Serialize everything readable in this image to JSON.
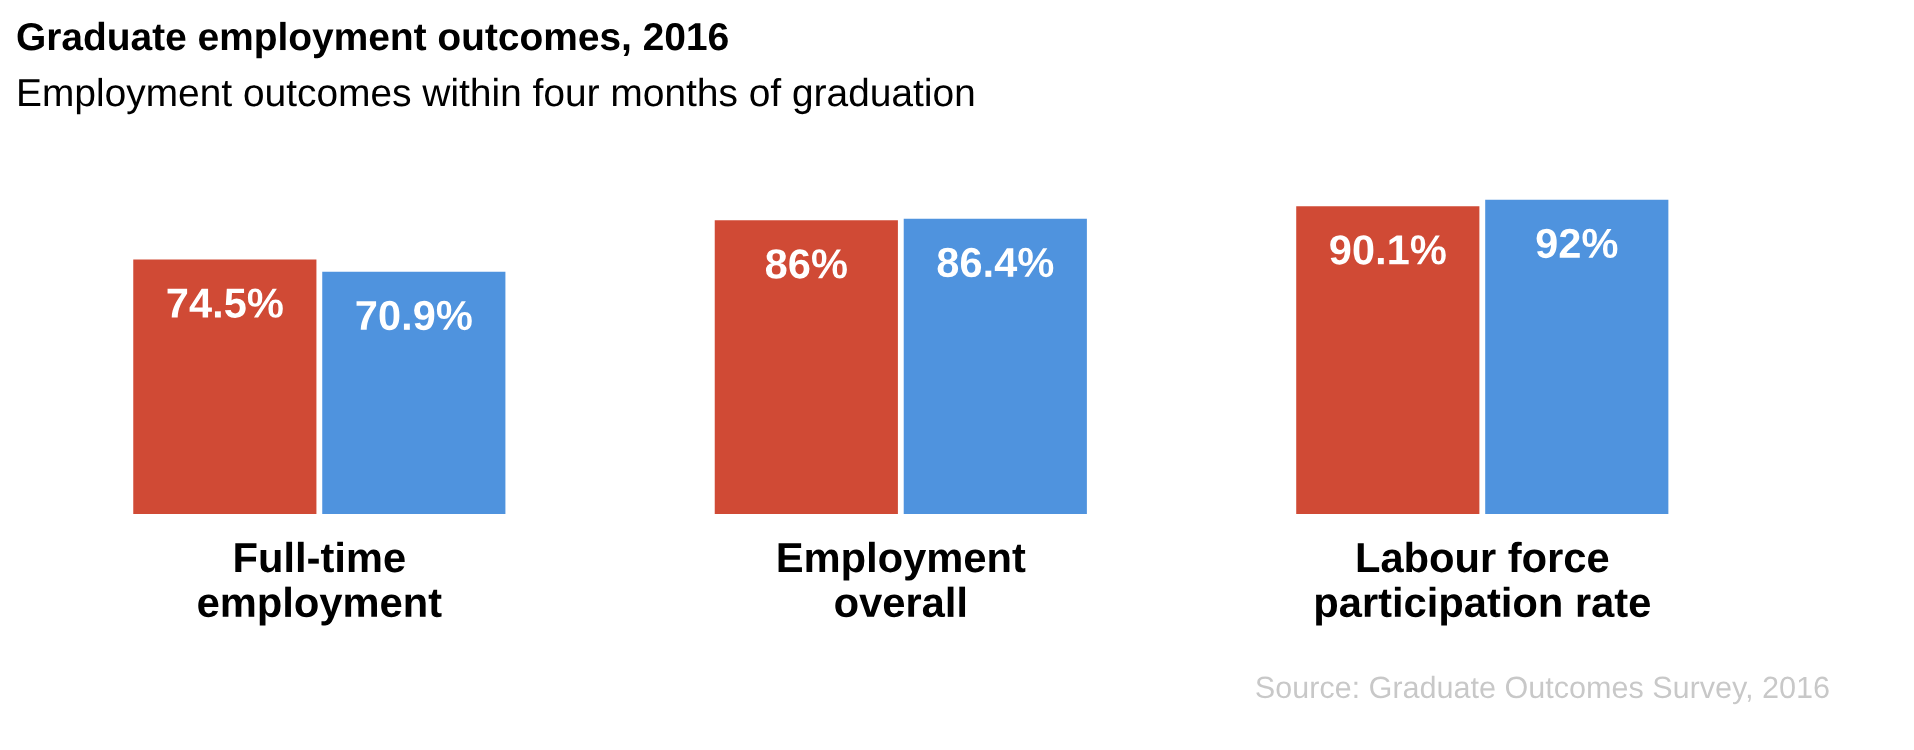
{
  "chart_data": {
    "type": "bar",
    "title": "Graduate employment outcomes, 2016",
    "subtitle": "Employment outcomes within four months of graduation",
    "categories": [
      "Full-time\nemployment",
      "Employment\noverall",
      "Labour force\nparticipation rate"
    ],
    "series": [
      {
        "color": "#d04a35",
        "values": [
          74.5,
          86,
          90.1
        ],
        "value_labels": [
          "74.5%",
          "86%",
          "90.1%"
        ]
      },
      {
        "color": "#4f93de",
        "values": [
          70.9,
          86.4,
          92
        ],
        "value_labels": [
          "70.9%",
          "86.4%",
          "92%"
        ]
      }
    ],
    "annotations": [
      "Source: Graduate Outcomes Survey, 2016"
    ],
    "grid": false,
    "legend": false
  }
}
